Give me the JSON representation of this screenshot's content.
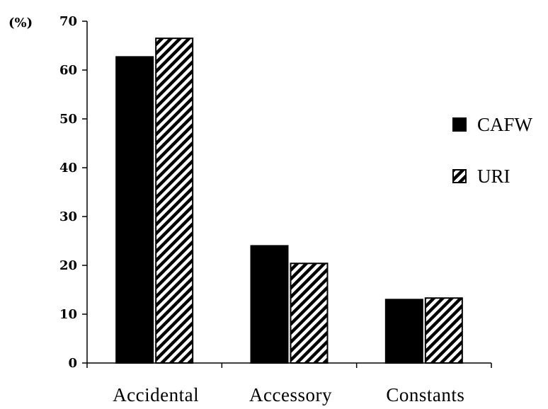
{
  "chart_data": {
    "type": "bar",
    "ylabel": "(%)",
    "ylim": [
      0,
      70
    ],
    "yticks": [
      0,
      10,
      20,
      30,
      40,
      50,
      60,
      70
    ],
    "categories": [
      "Accidental",
      "Accessory",
      "Constants"
    ],
    "series": [
      {
        "name": "CAFW",
        "values": [
          62.7,
          24.0,
          13.0
        ],
        "fill": "solid",
        "color": "#000000"
      },
      {
        "name": "URI",
        "values": [
          66.5,
          20.4,
          13.3
        ],
        "fill": "hatched",
        "color": "#000000"
      }
    ],
    "legend_position": "right",
    "grid": false
  }
}
